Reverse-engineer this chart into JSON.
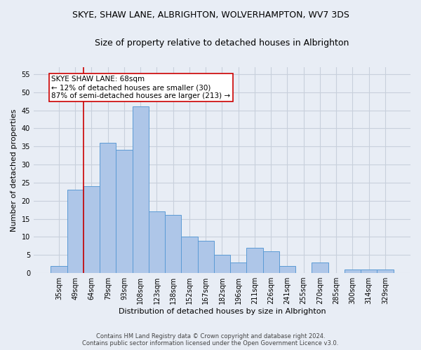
{
  "title": "SKYE, SHAW LANE, ALBRIGHTON, WOLVERHAMPTON, WV7 3DS",
  "subtitle": "Size of property relative to detached houses in Albrighton",
  "xlabel_bottom": "Distribution of detached houses by size in Albrighton",
  "ylabel": "Number of detached properties",
  "categories": [
    "35sqm",
    "49sqm",
    "64sqm",
    "79sqm",
    "93sqm",
    "108sqm",
    "123sqm",
    "138sqm",
    "152sqm",
    "167sqm",
    "182sqm",
    "196sqm",
    "211sqm",
    "226sqm",
    "241sqm",
    "255sqm",
    "270sqm",
    "285sqm",
    "300sqm",
    "314sqm",
    "329sqm"
  ],
  "values": [
    2,
    23,
    24,
    36,
    34,
    46,
    17,
    16,
    10,
    9,
    5,
    3,
    7,
    6,
    2,
    0,
    3,
    0,
    1,
    1,
    1
  ],
  "bar_color": "#aec6e8",
  "bar_edge_color": "#5b9bd5",
  "annotation_line1": "SKYE SHAW LANE: 68sqm",
  "annotation_line2": "← 12% of detached houses are smaller (30)",
  "annotation_line3": "87% of semi-detached houses are larger (213) →",
  "annotation_box_color": "#ffffff",
  "annotation_box_edge": "#cc0000",
  "vline_color": "#cc0000",
  "vline_x_index": 2,
  "ylim": [
    0,
    57
  ],
  "yticks": [
    0,
    5,
    10,
    15,
    20,
    25,
    30,
    35,
    40,
    45,
    50,
    55
  ],
  "grid_color": "#c8d0dc",
  "background_color": "#e8edf5",
  "footer_line1": "Contains HM Land Registry data © Crown copyright and database right 2024.",
  "footer_line2": "Contains public sector information licensed under the Open Government Licence v3.0.",
  "title_fontsize": 9,
  "subtitle_fontsize": 9,
  "xlabel_fontsize": 8,
  "ylabel_fontsize": 8,
  "tick_fontsize": 7,
  "annotation_fontsize": 7.5,
  "footer_fontsize": 6
}
